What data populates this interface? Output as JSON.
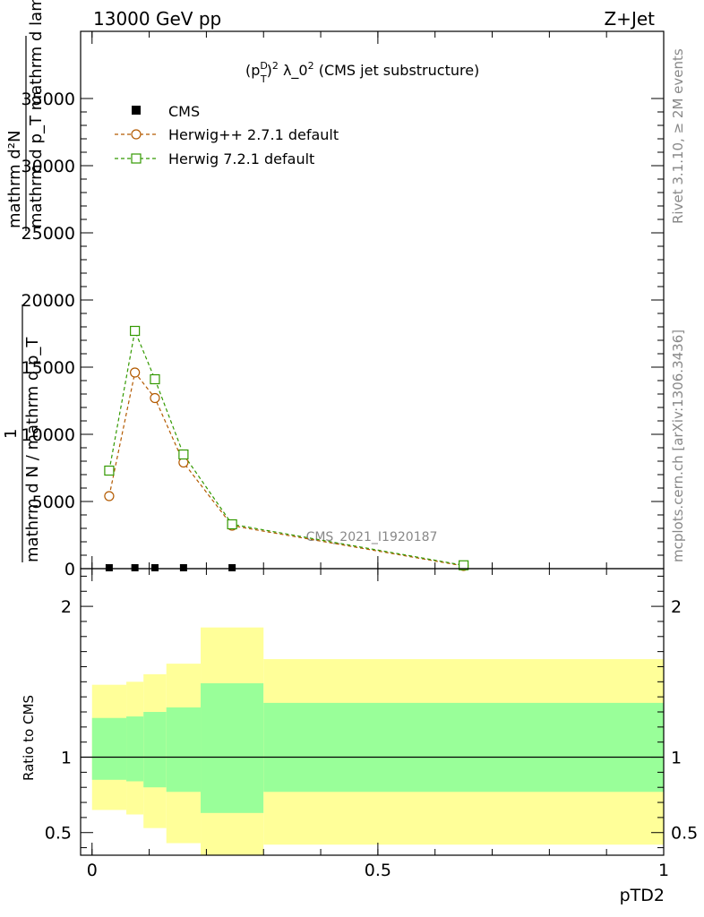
{
  "header": {
    "left": "13000 GeV pp",
    "right": "Z+Jet"
  },
  "side_labels": {
    "rivet": "Rivet 3.1.10, ≥ 2M events",
    "mcplots": "mcplots.cern.ch [arXiv:1306.3436]"
  },
  "chart_data": [
    {
      "type": "line",
      "title_parts": {
        "p": "(p",
        "sup_D": "D",
        "sub_T": "T",
        "close": ")",
        "sup_2a": "2",
        "lambda": " λ_0",
        "sup_2b": "2",
        "rest": " (CMS jet substructure)"
      },
      "watermark": "CMS_2021_I1920187",
      "ylabel_lines": [
        "mathrm d²N",
        "mathrm d p_T mathrm d lambda",
        "1",
        "mathrm d N / mathrm d p_T"
      ],
      "xlim": [
        -0.02,
        1.0
      ],
      "ylim": [
        0,
        40000
      ],
      "yticks": [
        0,
        5000,
        10000,
        15000,
        20000,
        25000,
        30000,
        35000
      ],
      "ytick_labels": [
        "0",
        "5000",
        "10000",
        "15000",
        "20000",
        "25000",
        "30000",
        "35000"
      ],
      "series": [
        {
          "name": "CMS",
          "marker": "square-filled",
          "color": "#000000",
          "x": [
            0.03,
            0.075,
            0.11,
            0.16,
            0.245
          ],
          "y": [
            0,
            0,
            0,
            0,
            0
          ]
        },
        {
          "name": "Herwig++ 2.7.1 default",
          "marker": "circle-open",
          "color": "#b35a00",
          "x": [
            0.03,
            0.075,
            0.11,
            0.16,
            0.245,
            0.65
          ],
          "y": [
            5400,
            14600,
            12700,
            7900,
            3200,
            200
          ]
        },
        {
          "name": "Herwig 7.2.1 default",
          "marker": "square-open",
          "color": "#339900",
          "x": [
            0.03,
            0.075,
            0.11,
            0.16,
            0.245,
            0.65
          ],
          "y": [
            7300,
            17700,
            14100,
            8500,
            3300,
            250
          ]
        }
      ]
    },
    {
      "type": "area",
      "ylabel": "Ratio to CMS",
      "xlabel": "pTD2",
      "xlim": [
        -0.02,
        1.0
      ],
      "ylim": [
        0.35,
        2.25
      ],
      "yticks": [
        0.5,
        1,
        2
      ],
      "ytick_labels": [
        "0.5",
        "1",
        "2"
      ],
      "xticks": [
        0,
        0.5,
        1
      ],
      "xtick_labels": [
        "0",
        "0.5",
        "1"
      ],
      "reference_line": 1,
      "bin_edges": [
        0,
        0.06,
        0.09,
        0.13,
        0.19,
        0.3,
        1.0
      ],
      "band_outer": {
        "color": "#ffff99",
        "low": [
          0.65,
          0.62,
          0.53,
          0.43,
          0.32,
          0.42
        ],
        "high": [
          1.48,
          1.5,
          1.55,
          1.62,
          1.86,
          1.65
        ]
      },
      "band_inner": {
        "color": "#99ff99",
        "low": [
          0.85,
          0.84,
          0.8,
          0.77,
          0.63,
          0.77
        ],
        "high": [
          1.26,
          1.27,
          1.3,
          1.33,
          1.49,
          1.36
        ]
      }
    }
  ]
}
